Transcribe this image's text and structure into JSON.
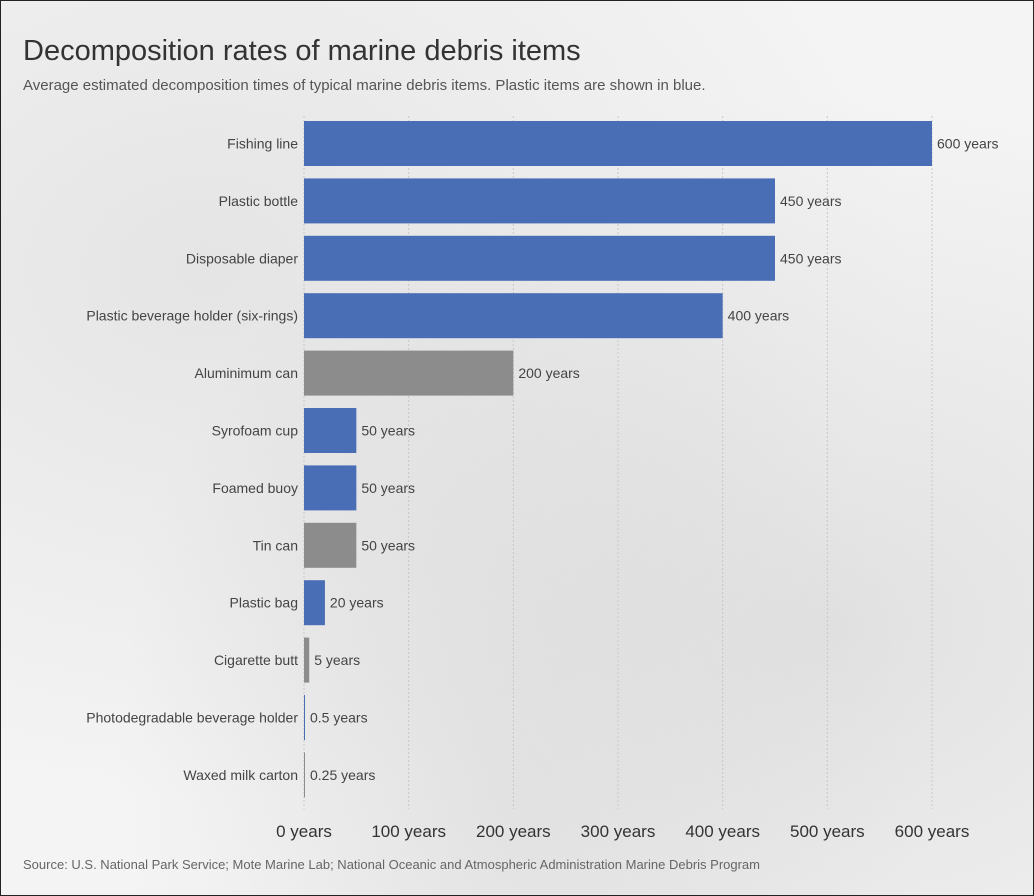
{
  "chart_data": {
    "type": "bar",
    "orientation": "horizontal",
    "title": "Decomposition rates of marine debris items",
    "subtitle": "Average estimated decomposition times of typical marine debris items. Plastic items are shown in blue.",
    "source": "Source: U.S. National Park Service; Mote Marine Lab; National Oceanic and Atmospheric Administration Marine Debris Program",
    "categories": [
      "Fishing line",
      "Plastic bottle",
      "Disposable diaper",
      "Plastic beverage holder (six-rings)",
      "Aluminimum can",
      "Syrofoam cup",
      "Foamed buoy",
      "Tin can",
      "Plastic bag",
      "Cigarette butt",
      "Photodegradable beverage holder",
      "Waxed milk carton"
    ],
    "values": [
      600,
      450,
      450,
      400,
      200,
      50,
      50,
      50,
      20,
      5,
      0.5,
      0.25
    ],
    "value_labels": [
      "600 years",
      "450 years",
      "450 years",
      "400 years",
      "200 years",
      "50 years",
      "50 years",
      "50 years",
      "20 years",
      "5 years",
      "0.5 years",
      "0.25 years"
    ],
    "is_plastic": [
      true,
      true,
      true,
      true,
      false,
      true,
      true,
      false,
      true,
      false,
      true,
      false
    ],
    "colors": {
      "plastic": "#4a6eb5",
      "other": "#8c8c8c"
    },
    "x_ticks": [
      0,
      100,
      200,
      300,
      400,
      500,
      600
    ],
    "x_tick_labels": [
      "0 years",
      "100 years",
      "200 years",
      "300 years",
      "400 years",
      "500 years",
      "600 years"
    ],
    "xlim": [
      0,
      600
    ],
    "grid": true
  }
}
